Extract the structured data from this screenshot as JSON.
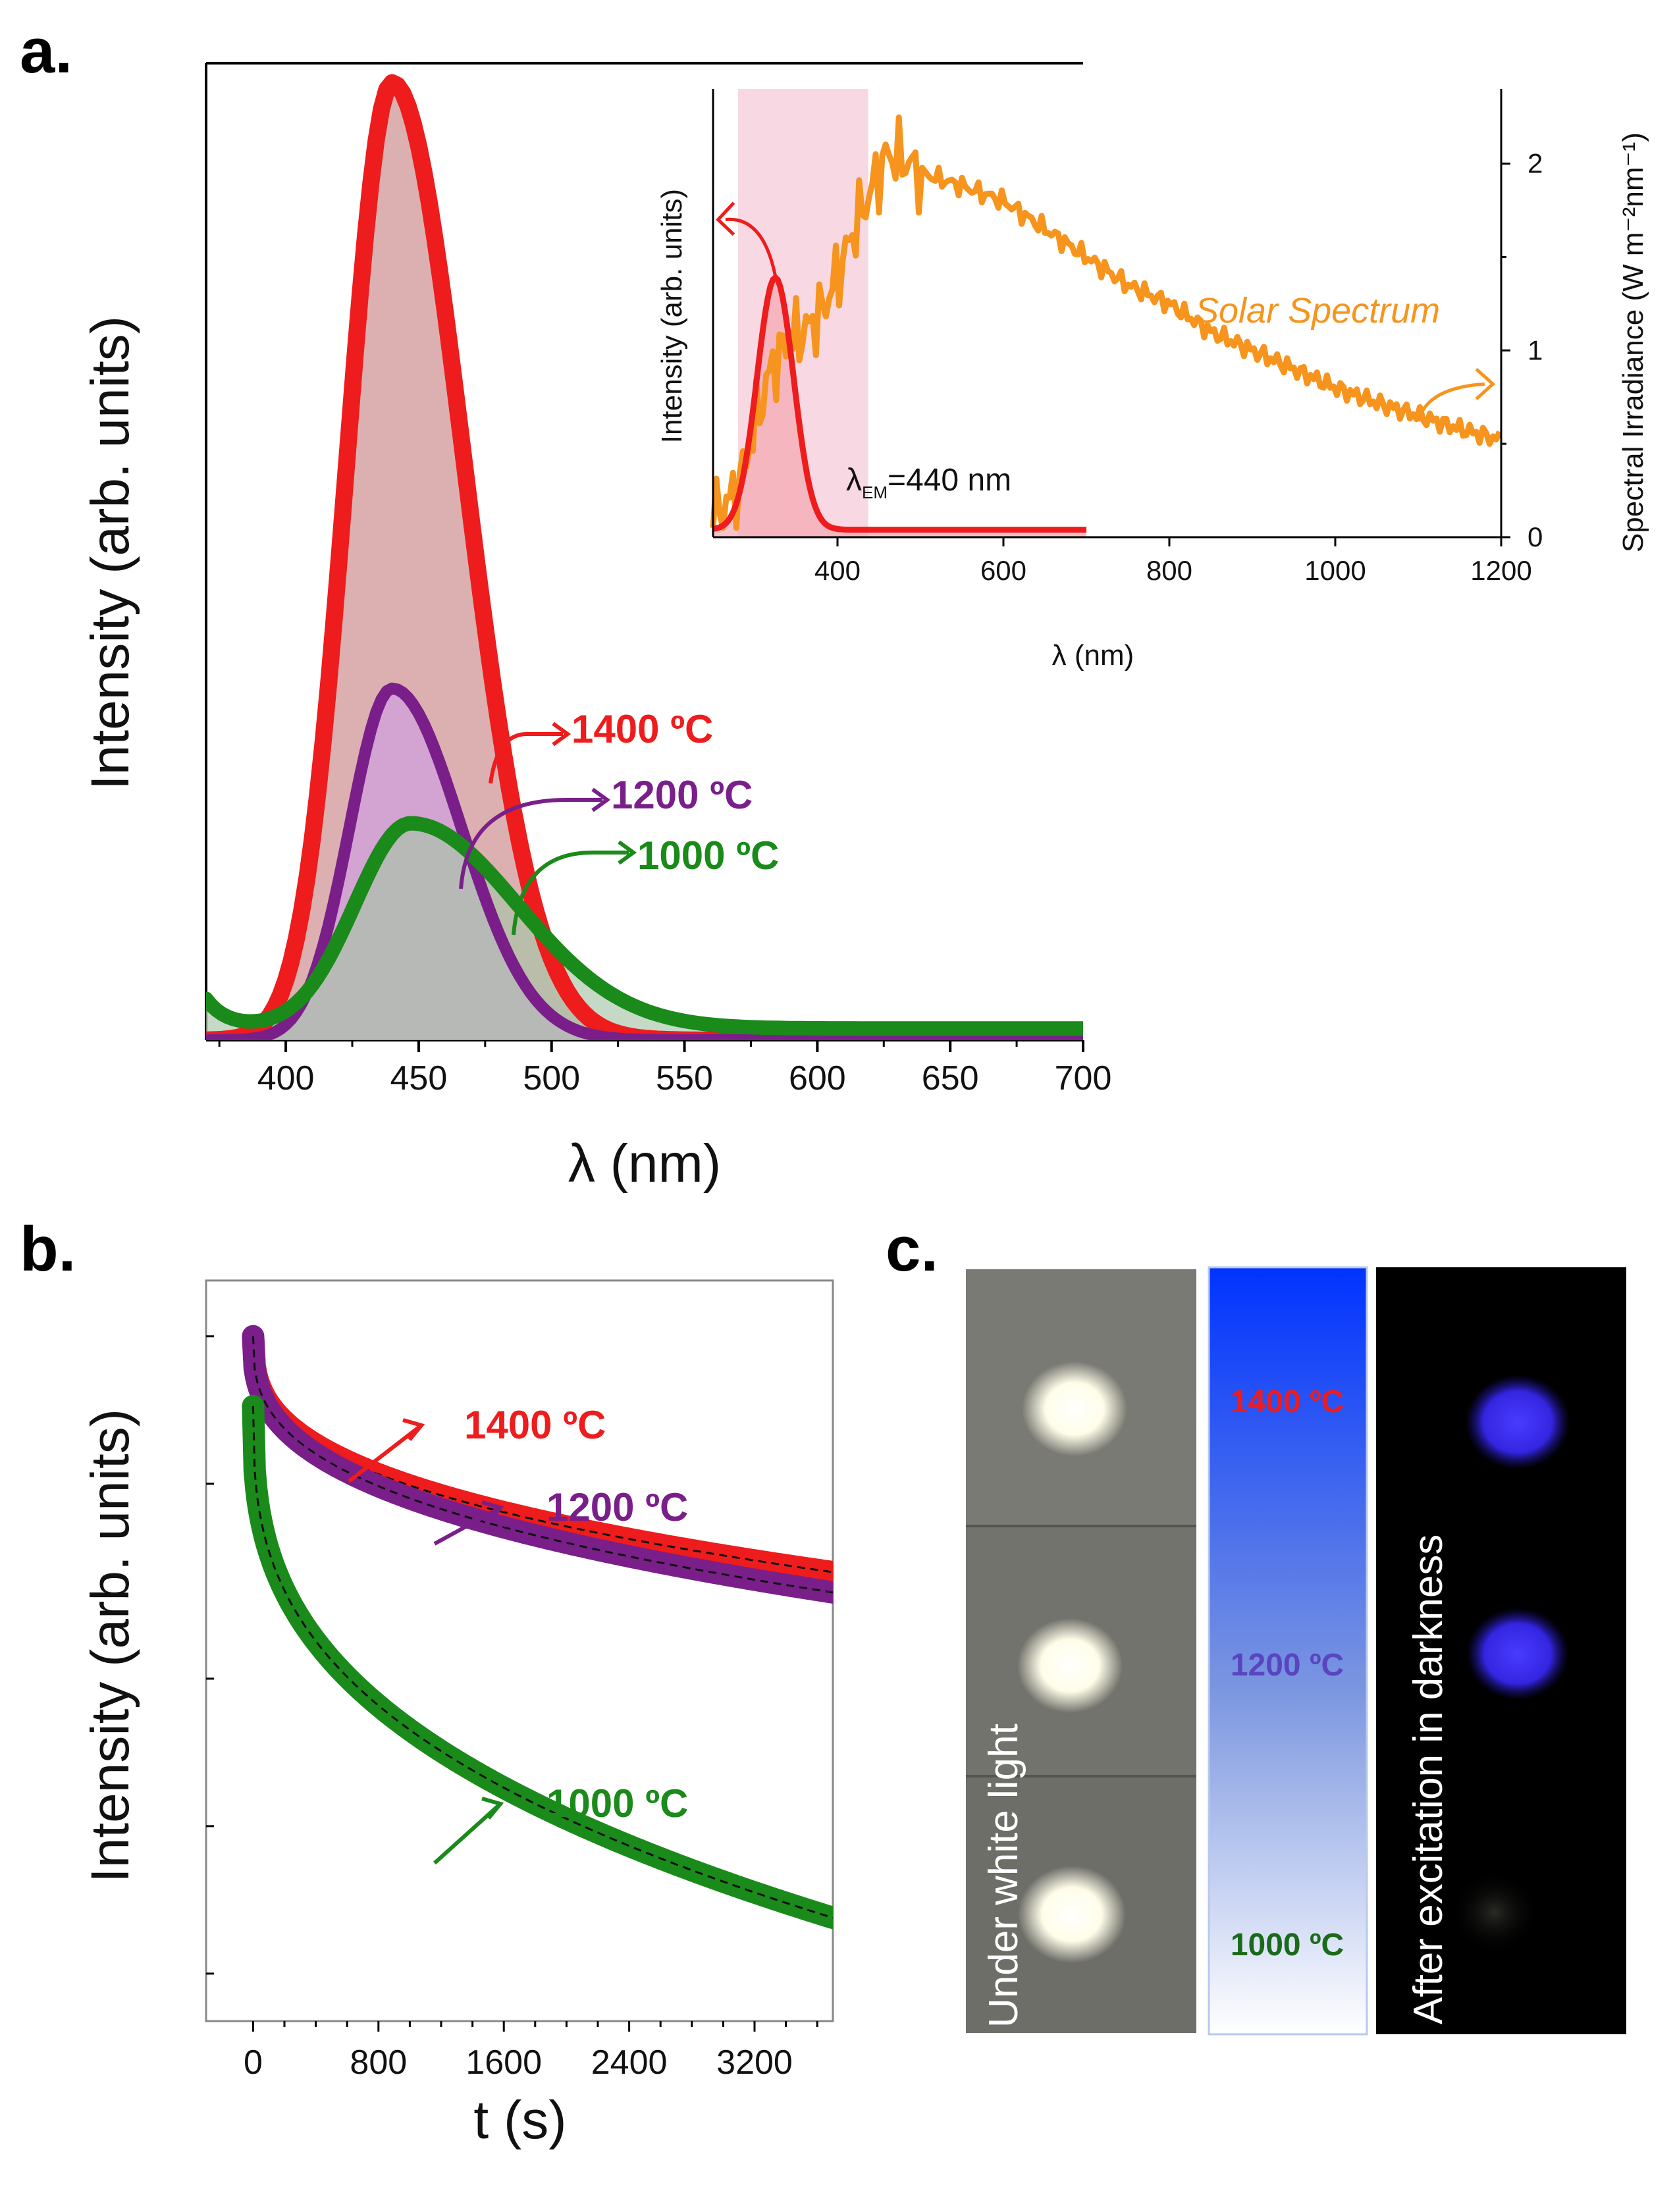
{
  "panels": {
    "a": {
      "letter": "a."
    },
    "b": {
      "letter": "b."
    },
    "c": {
      "letter": "c."
    }
  },
  "chart_data": [
    {
      "id": "a-main",
      "type": "line",
      "title": "",
      "xlabel": "λ (nm)",
      "ylabel": "Intensity (arb. units)",
      "xlim": [
        370,
        700
      ],
      "ylim": [
        0,
        1.0
      ],
      "xticks": [
        400,
        450,
        500,
        550,
        600,
        650,
        700
      ],
      "series": [
        {
          "name": "1400 ºC",
          "label": "1400 ºC",
          "color": "#ee1c1c",
          "fill": "#c98585",
          "peak_nm": 440,
          "peak": 0.98,
          "sigma_left": 17,
          "sigma_right": 27,
          "width": 26
        },
        {
          "name": "1200 ºC",
          "label": "1200 ºC",
          "color": "#7a1f8a",
          "fill": "#cc99ee",
          "peak_nm": 440,
          "peak": 0.36,
          "sigma_left": 16,
          "sigma_right": 26,
          "width": 18
        },
        {
          "name": "1000 ºC",
          "label": "1000 ºC",
          "color": "#1a8a1a",
          "fill": "#a7c5a7",
          "peak_nm": 447,
          "peak": 0.21,
          "sigma_left": 21,
          "sigma_right": 40,
          "width": 22
        }
      ]
    },
    {
      "id": "a-inset",
      "type": "line",
      "xlabel": "λ (nm)",
      "ylabel_left": "Intensity (arb. units)",
      "ylabel_right": "Spectral Irradiance (W m⁻²nm⁻¹)",
      "xlim": [
        250,
        1200
      ],
      "y2lim": [
        0,
        2.4
      ],
      "xticks": [
        400,
        600,
        800,
        1000,
        1200
      ],
      "y2ticks": [
        0,
        1,
        2
      ],
      "highlight_band": [
        280,
        437
      ],
      "annotation": "λEM=440 nm",
      "series": [
        {
          "name": "Solar Spectrum",
          "label": "Solar Spectrum",
          "color": "#f7941d",
          "x": [
            250,
            280,
            300,
            320,
            340,
            360,
            380,
            400,
            420,
            440,
            460,
            480,
            500,
            550,
            600,
            650,
            700,
            750,
            800,
            850,
            900,
            950,
            1000,
            1050,
            1100,
            1150,
            1200
          ],
          "y": [
            0.1,
            0.25,
            0.6,
            0.9,
            1.05,
            1.1,
            1.2,
            1.4,
            1.65,
            1.85,
            2.05,
            2.02,
            1.95,
            1.88,
            1.8,
            1.65,
            1.5,
            1.35,
            1.25,
            1.1,
            1.0,
            0.9,
            0.8,
            0.72,
            0.65,
            0.58,
            0.52
          ]
        },
        {
          "name": "Excitation",
          "color": "#ee1c1c",
          "peak_nm": 325,
          "peak": 1.35,
          "sigma": 22
        }
      ]
    },
    {
      "id": "b",
      "type": "line",
      "xlabel": "t (s)",
      "ylabel": "Intensity (arb. units)",
      "yscale": "log",
      "xlim": [
        -300,
        3700
      ],
      "xticks": [
        0,
        800,
        1600,
        2400,
        3200
      ],
      "series": [
        {
          "name": "1400 ºC",
          "label": "1400 ºC",
          "color": "#ee1c1c",
          "start": 1.0,
          "end": 0.33
        },
        {
          "name": "1200 ºC",
          "label": "1200 ºC",
          "color": "#7a1f8a",
          "start": 1.0,
          "end": 0.3
        },
        {
          "name": "1000 ºC",
          "label": "1000 ºC",
          "color": "#1a8a1a",
          "start": 0.72,
          "end": 0.065
        }
      ]
    }
  ],
  "photos": {
    "left_label": "Under white light",
    "right_label": "After excitation in darkness",
    "swatch_labels": [
      {
        "text": "1400 ºC",
        "color": "#ee1c1c"
      },
      {
        "text": "1200 ºC",
        "color": "#5a45c0"
      },
      {
        "text": "1000 ºC",
        "color": "#1a6a1a"
      }
    ]
  }
}
